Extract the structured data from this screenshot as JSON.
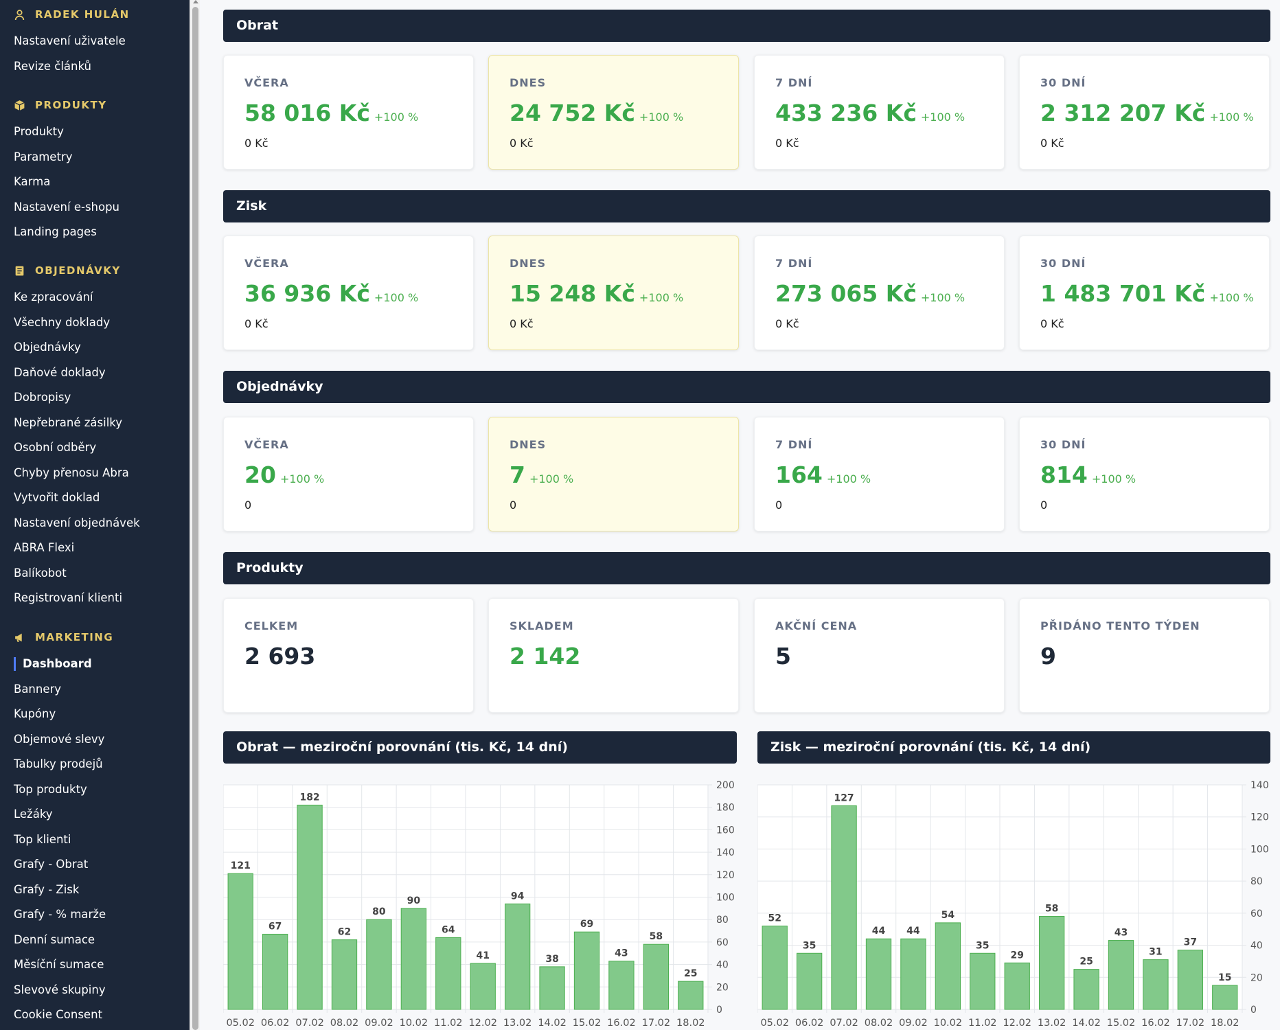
{
  "user": {
    "name": "RADEK HULÁN"
  },
  "sidebar": {
    "user_items": [
      "Nastavení uživatele",
      "Revize článků"
    ],
    "produkty_title": "PRODUKTY",
    "produkty_items": [
      "Produkty",
      "Parametry",
      "Karma",
      "Nastavení e-shopu",
      "Landing pages"
    ],
    "objednavky_title": "OBJEDNÁVKY",
    "objednavky_items": [
      "Ke zpracování",
      "Všechny doklady",
      "Objednávky",
      "Daňové doklady",
      "Dobropisy",
      "Nepřebrané zásilky",
      "Osobní odběry",
      "Chyby přenosu Abra",
      "Vytvořit doklad",
      "Nastavení objednávek",
      "ABRA Flexi",
      "Balíkobot",
      "Registrovaní klienti"
    ],
    "marketing_title": "MARKETING",
    "marketing_items": [
      "Dashboard",
      "Bannery",
      "Kupóny",
      "Objemové slevy",
      "Tabulky prodejů",
      "Top produkty",
      "Ležáky",
      "Top klienti",
      "Grafy - Obrat",
      "Grafy - Zisk",
      "Grafy - % marže",
      "Denní sumace",
      "Měsíční sumace",
      "Slevové skupiny",
      "Cookie Consent"
    ],
    "active": "Dashboard"
  },
  "sections": {
    "obrat": {
      "title": "Obrat",
      "cards": [
        {
          "label": "VČERA",
          "value": "58 016 Kč",
          "pct": "+100 %",
          "sub": "0 Kč"
        },
        {
          "label": "DNES",
          "value": "24 752 Kč",
          "pct": "+100 %",
          "sub": "0 Kč"
        },
        {
          "label": "7 DNÍ",
          "value": "433 236 Kč",
          "pct": "+100 %",
          "sub": "0 Kč"
        },
        {
          "label": "30 DNÍ",
          "value": "2 312 207 Kč",
          "pct": "+100 %",
          "sub": "0 Kč"
        }
      ]
    },
    "zisk": {
      "title": "Zisk",
      "cards": [
        {
          "label": "VČERA",
          "value": "36 936 Kč",
          "pct": "+100 %",
          "sub": "0 Kč"
        },
        {
          "label": "DNES",
          "value": "15 248 Kč",
          "pct": "+100 %",
          "sub": "0 Kč"
        },
        {
          "label": "7 DNÍ",
          "value": "273 065 Kč",
          "pct": "+100 %",
          "sub": "0 Kč"
        },
        {
          "label": "30 DNÍ",
          "value": "1 483 701 Kč",
          "pct": "+100 %",
          "sub": "0 Kč"
        }
      ]
    },
    "objednavky": {
      "title": "Objednávky",
      "cards": [
        {
          "label": "VČERA",
          "value": "20",
          "pct": "+100 %",
          "sub": "0"
        },
        {
          "label": "DNES",
          "value": "7",
          "pct": "+100 %",
          "sub": "0"
        },
        {
          "label": "7 DNÍ",
          "value": "164",
          "pct": "+100 %",
          "sub": "0"
        },
        {
          "label": "30 DNÍ",
          "value": "814",
          "pct": "+100 %",
          "sub": "0"
        }
      ]
    },
    "produkty": {
      "title": "Produkty",
      "cards": [
        {
          "label": "CELKEM",
          "value": "2 693"
        },
        {
          "label": "SKLADEM",
          "value": "2 142"
        },
        {
          "label": "AKČNÍ CENA",
          "value": "5"
        },
        {
          "label": "PŘIDÁNO TENTO TÝDEN",
          "value": "9"
        }
      ]
    }
  },
  "colors": {
    "bar_fill": "#82c98a",
    "bar_stroke": "#4caf50",
    "value_green": "#39a84a",
    "sidebar_bg": "#1c2739",
    "section_header": "#e5c96a"
  },
  "chart_data": [
    {
      "type": "bar",
      "title": "Obrat — meziroční porovnání (tis. Kč, 14 dní)",
      "categories": [
        "05.02",
        "06.02",
        "07.02",
        "08.02",
        "09.02",
        "10.02",
        "11.02",
        "12.02",
        "13.02",
        "14.02",
        "15.02",
        "16.02",
        "17.02",
        "18.02"
      ],
      "values": [
        121,
        67,
        182,
        62,
        80,
        90,
        64,
        41,
        94,
        38,
        69,
        43,
        58,
        25
      ],
      "ylim": [
        0,
        200
      ],
      "yticks": [
        0,
        20,
        40,
        60,
        80,
        100,
        120,
        140,
        160,
        180,
        200
      ],
      "y_axis_side": "right",
      "grid": true
    },
    {
      "type": "bar",
      "title": "Zisk — meziroční porovnání (tis. Kč, 14 dní)",
      "categories": [
        "05.02",
        "06.02",
        "07.02",
        "08.02",
        "09.02",
        "10.02",
        "11.02",
        "12.02",
        "13.02",
        "14.02",
        "15.02",
        "16.02",
        "17.02",
        "18.02"
      ],
      "values": [
        52,
        35,
        127,
        44,
        44,
        54,
        35,
        29,
        58,
        25,
        43,
        31,
        37,
        15
      ],
      "ylim": [
        0,
        140
      ],
      "yticks": [
        0,
        20,
        40,
        60,
        80,
        100,
        120,
        140
      ],
      "y_axis_side": "right",
      "grid": true
    }
  ]
}
